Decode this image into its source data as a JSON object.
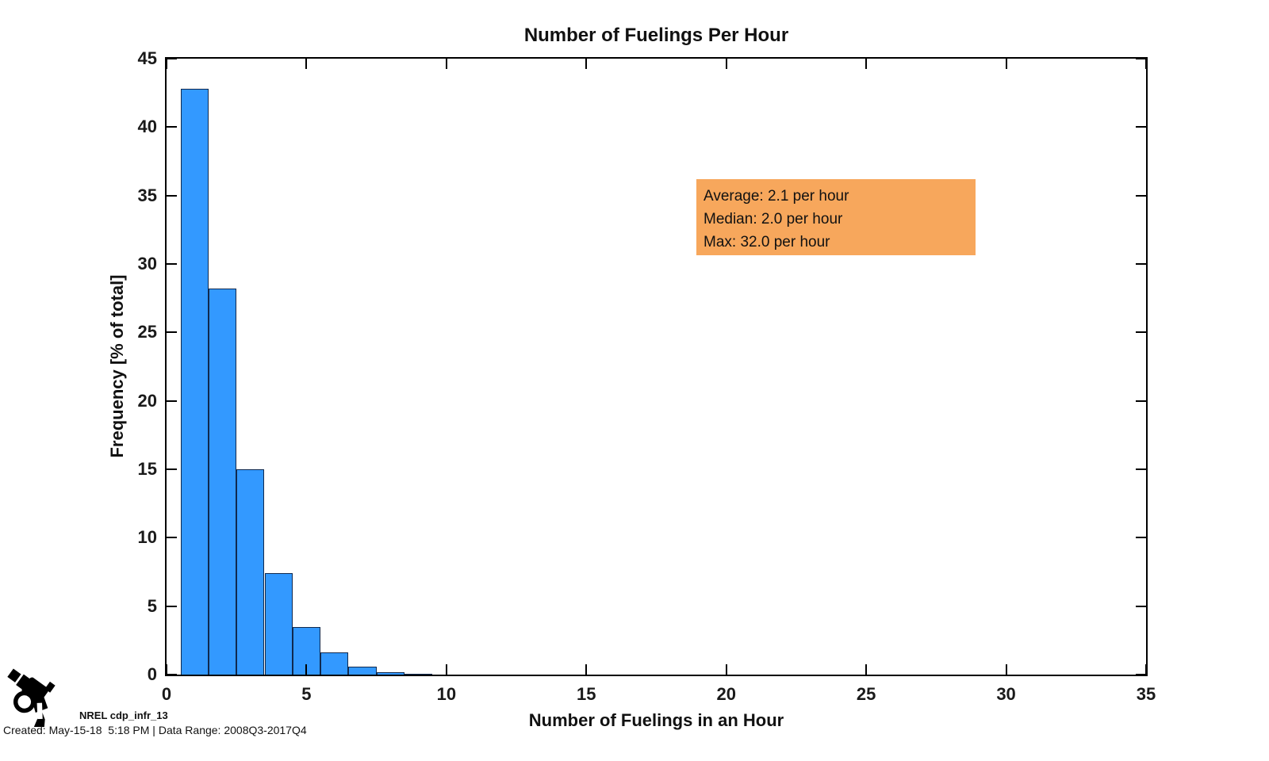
{
  "title": "Number of Fuelings Per Hour",
  "chart_data": {
    "type": "bar",
    "subtype": "histogram",
    "title": "Number of Fuelings Per Hour",
    "xlabel": "Number of Fuelings in an Hour",
    "ylabel": "Frequency [% of total]",
    "xlim": [
      0,
      35
    ],
    "ylim": [
      0,
      45
    ],
    "x_ticks": [
      0,
      5,
      10,
      15,
      20,
      25,
      30,
      35
    ],
    "y_ticks": [
      0,
      5,
      10,
      15,
      20,
      25,
      30,
      35,
      40,
      45
    ],
    "bin_width": 1,
    "bin_centers": [
      1,
      2,
      3,
      4,
      5,
      6,
      7,
      8,
      9
    ],
    "frequencies_pct": [
      42.8,
      28.2,
      15.0,
      7.4,
      3.5,
      1.6,
      0.6,
      0.2,
      0.07
    ],
    "bar_color": "#3399FF",
    "bar_edge_color": "#10294E",
    "grid": false,
    "legend": "none",
    "stats": {
      "average_per_hour": 2.1,
      "median_per_hour": 2.0,
      "max_per_hour": 32.0
    }
  },
  "annotation": {
    "bg_color": "#F7A75C",
    "lines": [
      "Average: 2.1 per hour",
      "Median: 2.0 per hour",
      "Max: 32.0 per hour"
    ]
  },
  "footer": {
    "logo_icon": "fuel-nozzle-icon",
    "source_label": "NREL cdp_infr_13",
    "created_line": "Created: May-15-18  5:18 PM | Data Range: 2008Q3-2017Q4"
  }
}
